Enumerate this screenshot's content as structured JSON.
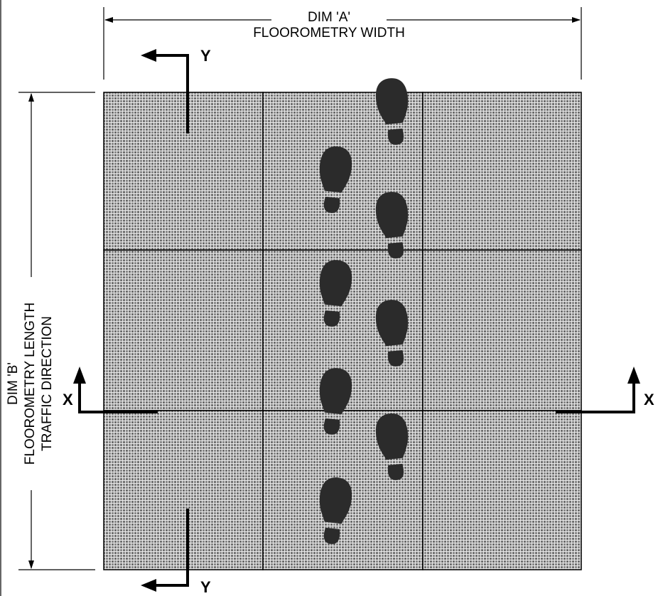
{
  "dim_a": {
    "label": "DIM 'A'",
    "description": "FLOOROMETRY WIDTH"
  },
  "dim_b": {
    "label": "DIM 'B'",
    "description": "FLOOROMETRY LENGTH",
    "note": "TRAFFIC DIRECTION"
  },
  "section_markers": {
    "y_label": "Y",
    "x_label": "X"
  },
  "colors": {
    "mat_fill": "#8a8a8a",
    "grid_line": "#e8e8e8",
    "outline": "#000000",
    "footprint": "#2b2b2b"
  },
  "icons": {
    "footprint": "shoe-print-icon",
    "section_arrow": "section-arrow-icon"
  }
}
